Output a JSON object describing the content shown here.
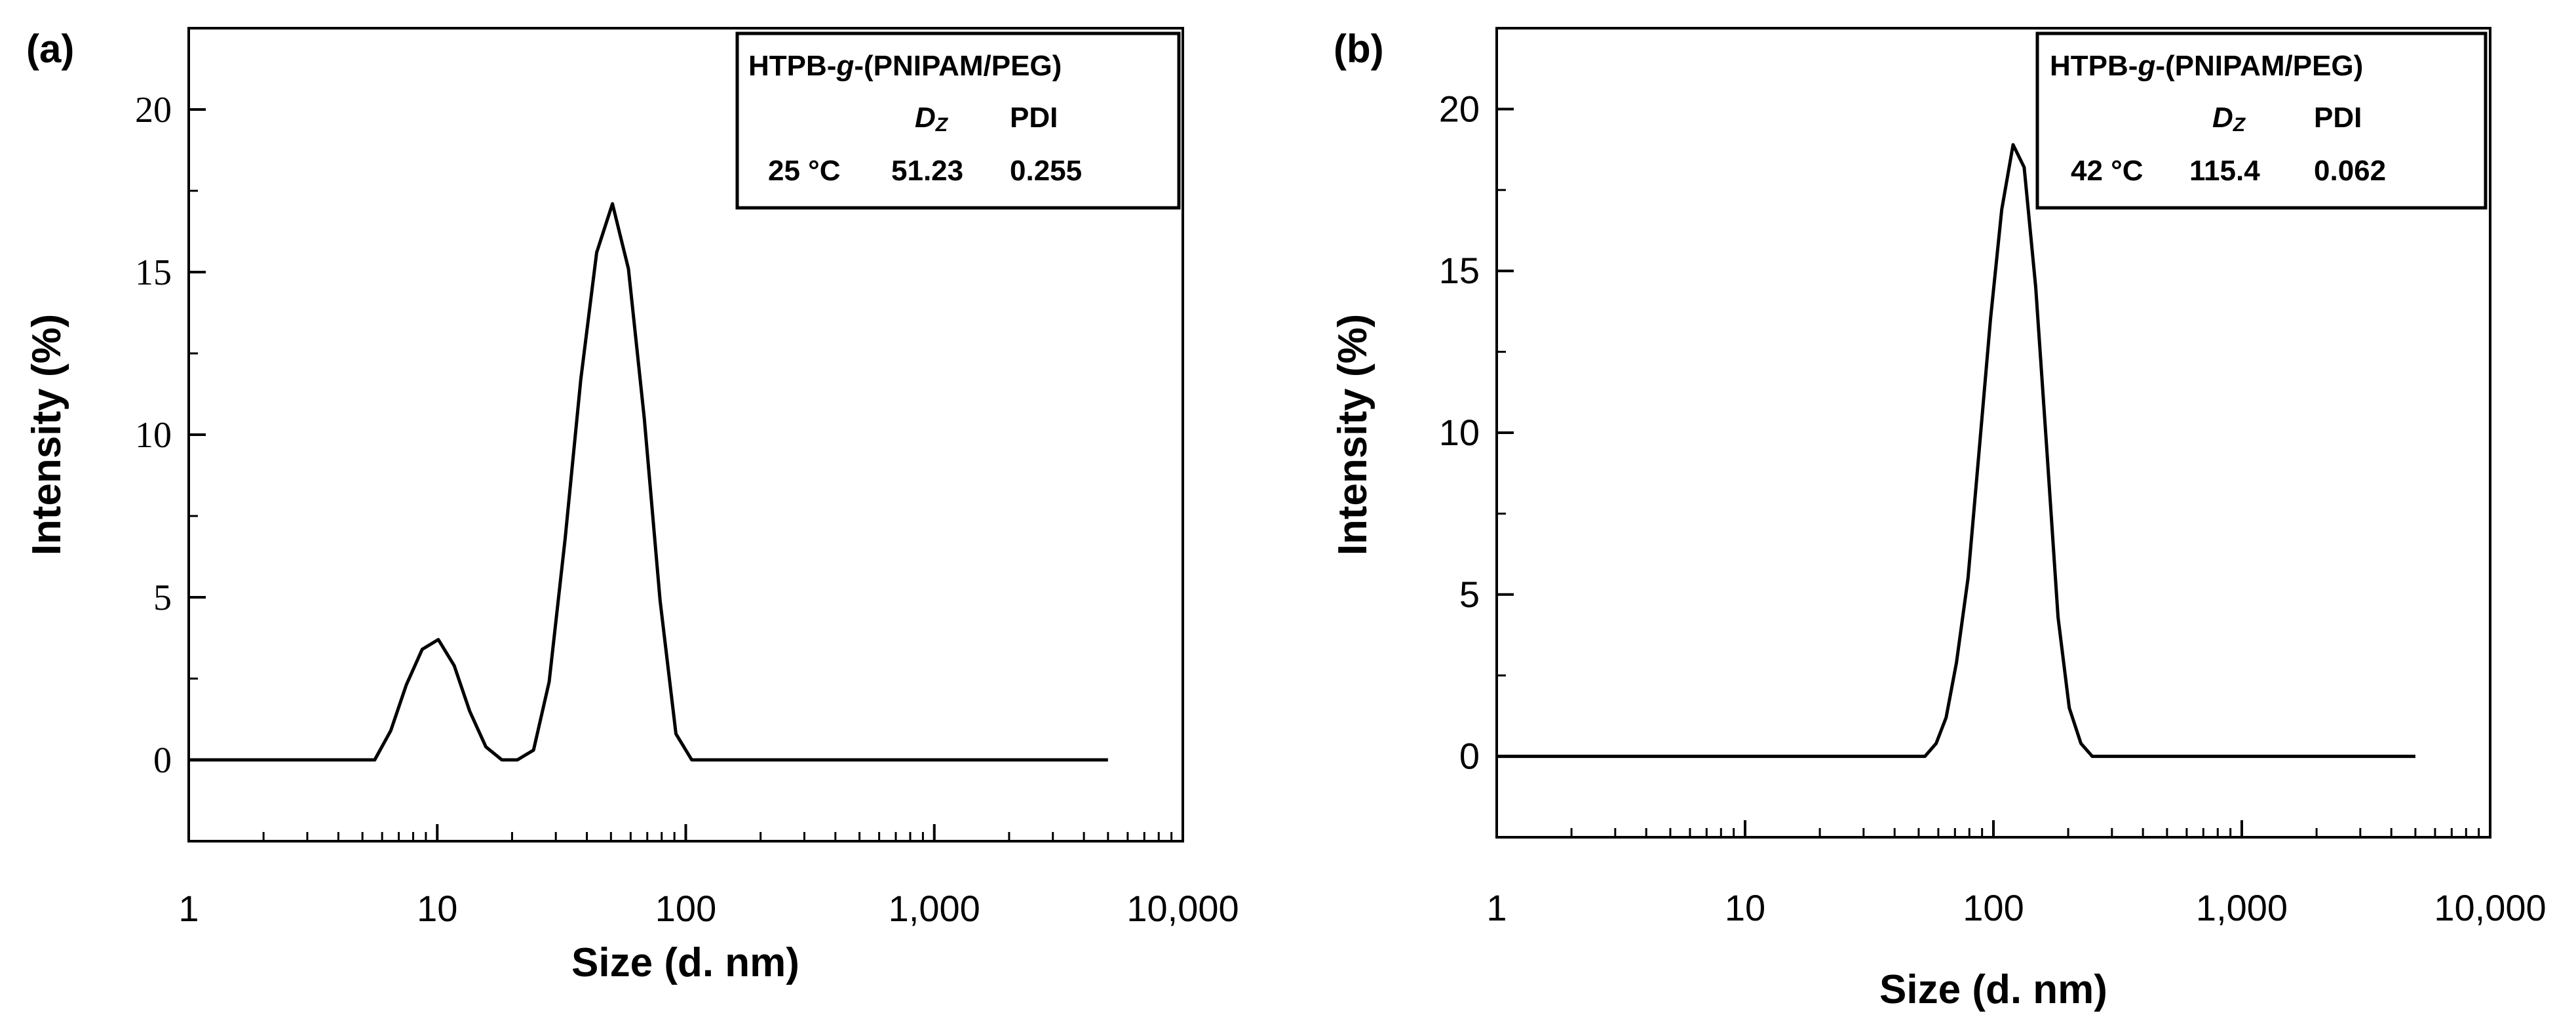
{
  "chart_data": [
    {
      "type": "line",
      "panel_label": "(a)",
      "xlabel": "Size (d. nm)",
      "ylabel": "Intensity (%)",
      "xscale": "log",
      "xlim": [
        1,
        10000
      ],
      "ylim": [
        -2.5,
        22.5
      ],
      "xticks": [
        1,
        10,
        100,
        1000,
        10000
      ],
      "xtick_labels": [
        "1",
        "10",
        "100",
        "1,000",
        "10,000"
      ],
      "yticks": [
        0,
        5,
        10,
        15,
        20
      ],
      "ytick_labels": [
        "0",
        "5",
        "10",
        "15",
        "20"
      ],
      "grid": false,
      "legend": {
        "placement": "top-right",
        "title_prefix": "HTPB-",
        "title_g": "g",
        "title_suffix": "-(PNIPAM/PEG)",
        "col_dz": "D",
        "col_dz_sub": "Z",
        "col_pdi": "PDI",
        "temp": "25 °C",
        "dz": "51.23",
        "pdi": "0.255"
      },
      "series": [
        {
          "x": [
            1,
            5.6,
            6.5,
            7.5,
            8.7,
            10.1,
            11.7,
            13.5,
            15.7,
            18.2,
            21.0,
            24.4,
            28.2,
            32.7,
            37.8,
            43.8,
            50.7,
            58.8,
            68.1,
            78.8,
            91.3,
            105.7,
            122.4,
            5000
          ],
          "y": [
            0,
            0,
            0.9,
            2.3,
            3.4,
            3.7,
            2.9,
            1.5,
            0.4,
            0,
            0,
            0.3,
            2.4,
            6.8,
            11.7,
            15.6,
            17.1,
            15.1,
            10.5,
            4.9,
            0.8,
            0,
            0,
            0
          ]
        }
      ]
    },
    {
      "type": "line",
      "panel_label": "(b)",
      "xlabel": "Size (d. nm)",
      "ylabel": "Intensity (%)",
      "xscale": "log",
      "xlim": [
        1,
        10000
      ],
      "ylim": [
        -2.5,
        22.5
      ],
      "xticks": [
        1,
        10,
        100,
        1000,
        10000
      ],
      "xtick_labels": [
        "1",
        "10",
        "100",
        "1,000",
        "10,000"
      ],
      "yticks": [
        0,
        5,
        10,
        15,
        20
      ],
      "ytick_labels": [
        "0",
        "5",
        "10",
        "15",
        "20"
      ],
      "grid": false,
      "legend": {
        "placement": "top-right",
        "title_prefix": "HTPB-",
        "title_g": "g",
        "title_suffix": "-(PNIPAM/PEG)",
        "col_dz": "D",
        "col_dz_sub": "Z",
        "col_pdi": "PDI",
        "temp": "42 °C",
        "dz": "115.4",
        "pdi": "0.062"
      },
      "series": [
        {
          "x": [
            1,
            53,
            58.8,
            64.5,
            71,
            79,
            87.5,
            97.3,
            108,
            120,
            133,
            148,
            164,
            182,
            202,
            225,
            250,
            270,
            5000
          ],
          "y": [
            0,
            0,
            0.4,
            1.2,
            2.9,
            5.5,
            9.4,
            13.5,
            16.9,
            18.9,
            18.2,
            14.5,
            9.5,
            4.3,
            1.5,
            0.4,
            0,
            0,
            0
          ]
        }
      ]
    }
  ]
}
